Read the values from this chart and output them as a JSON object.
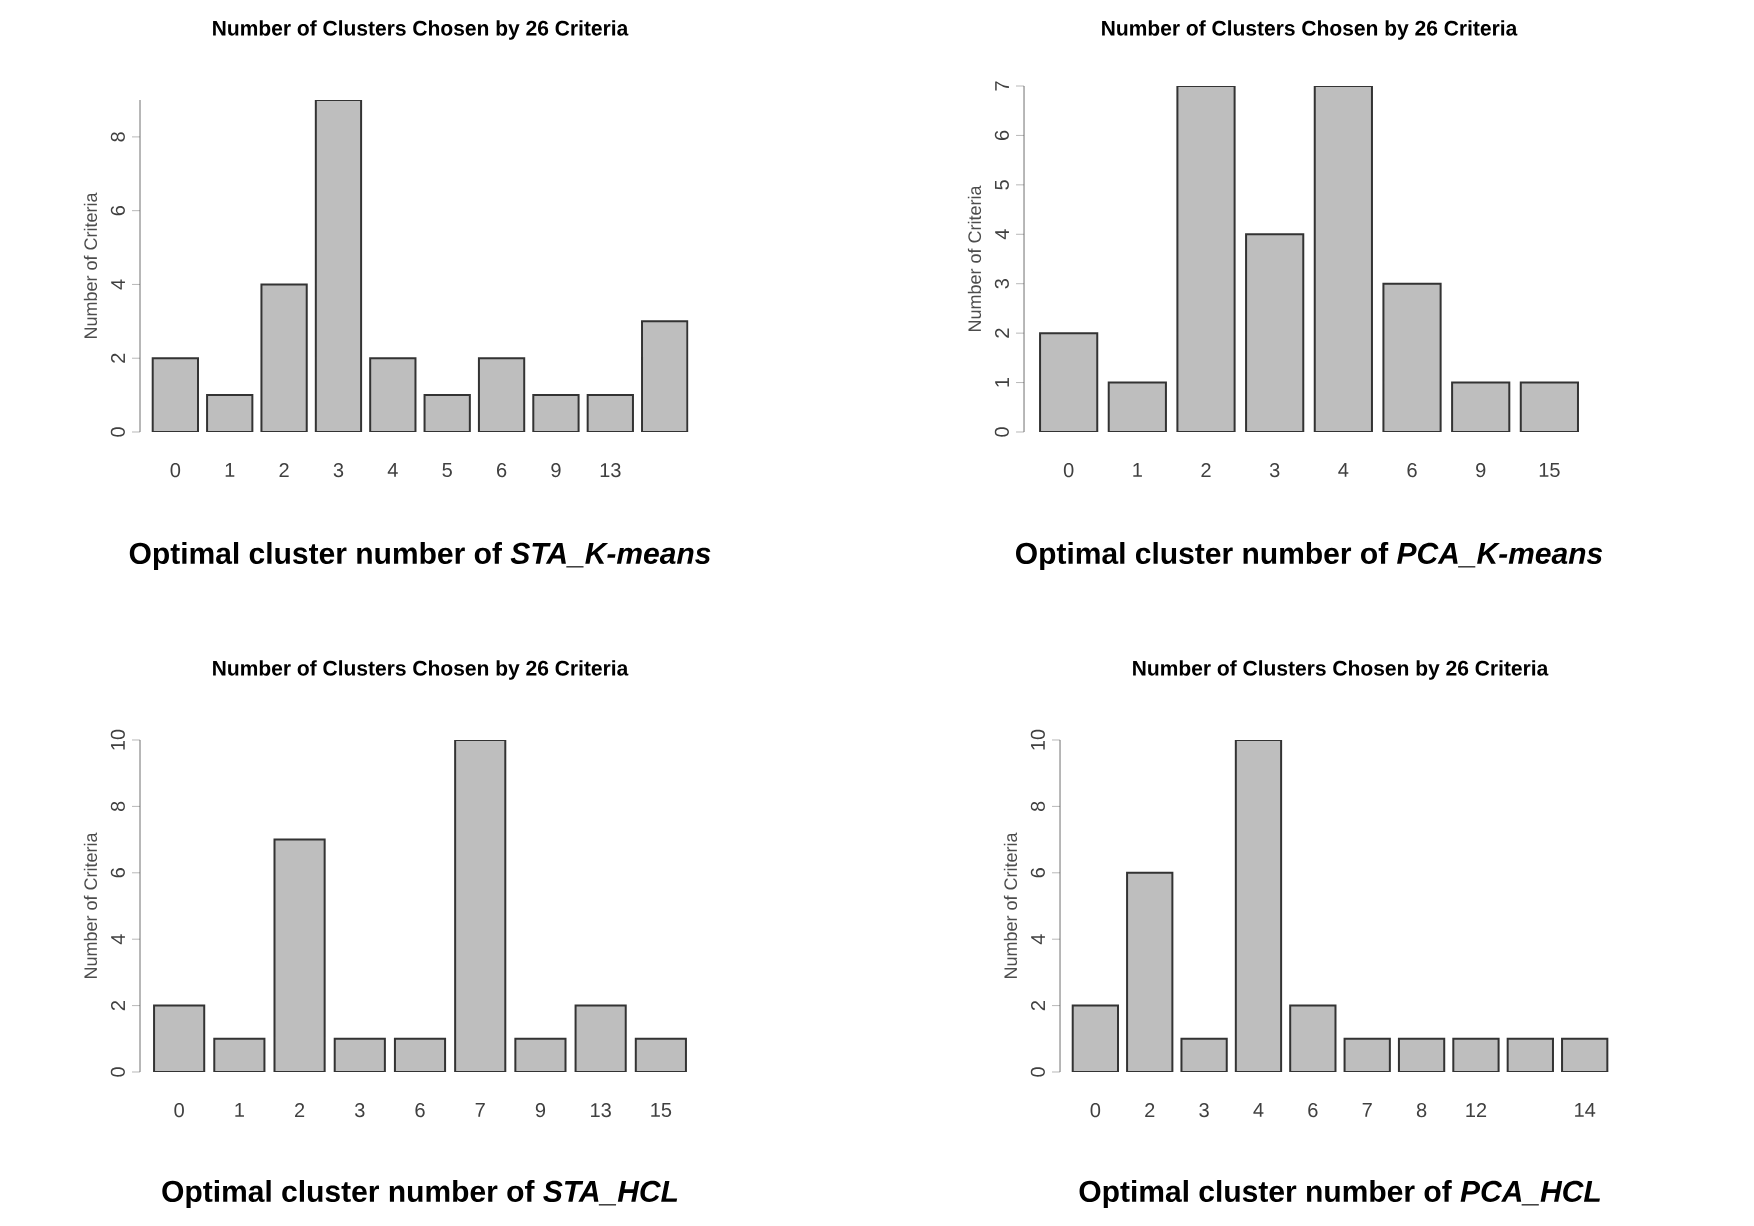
{
  "chart_data": [
    {
      "type": "bar",
      "title": "Number of Clusters Chosen by 26 Criteria",
      "ylabel": "Number of Criteria",
      "categories": [
        "0",
        "1",
        "2",
        "3",
        "4",
        "5",
        "6",
        "9",
        "13",
        null
      ],
      "values": [
        2,
        1,
        4,
        9,
        2,
        1,
        2,
        1,
        1,
        3
      ],
      "color": "#bebebe",
      "ylim": [
        0,
        9
      ],
      "yticks": [
        0,
        2,
        4,
        6,
        8
      ],
      "annotations": [
        "Optimal cluster number of *STA_K-means*"
      ]
    },
    {
      "type": "bar",
      "title": "Number of Clusters Chosen by 26 Criteria",
      "ylabel": "Number of Criteria",
      "categories": [
        "0",
        "1",
        "2",
        "3",
        "4",
        "6",
        "9",
        "15"
      ],
      "values": [
        2,
        1,
        7,
        4,
        7,
        3,
        1,
        1
      ],
      "color": "#bebebe",
      "ylim": [
        0,
        7
      ],
      "yticks": [
        0,
        1,
        2,
        3,
        4,
        5,
        6,
        7
      ],
      "annotations": [
        "Optimal cluster number of *PCA_K-means*"
      ]
    },
    {
      "type": "bar",
      "title": "Number of Clusters Chosen by 26 Criteria",
      "ylabel": "Number of Criteria",
      "categories": [
        "0",
        "1",
        "2",
        "3",
        "6",
        "7",
        "9",
        "13",
        "15"
      ],
      "values": [
        2,
        1,
        7,
        1,
        1,
        10,
        1,
        2,
        1
      ],
      "color": "#bebebe",
      "ylim": [
        0,
        10
      ],
      "yticks": [
        0,
        2,
        4,
        6,
        8,
        10
      ],
      "annotations": [
        "Optimal cluster number of *STA_HCL*"
      ]
    },
    {
      "type": "bar",
      "title": "Number of Clusters Chosen by 26 Criteria",
      "ylabel": "Number of Criteria",
      "categories": [
        "0",
        "2",
        "3",
        "4",
        "6",
        "7",
        "8",
        "12",
        null,
        "14"
      ],
      "values": [
        2,
        6,
        1,
        10,
        2,
        1,
        1,
        1,
        1,
        1
      ],
      "color": "#bebebe",
      "ylim": [
        0,
        10
      ],
      "yticks": [
        0,
        2,
        4,
        6,
        8,
        10
      ],
      "annotations": [
        "Optimal cluster number of *PCA_HCL*"
      ]
    }
  ]
}
